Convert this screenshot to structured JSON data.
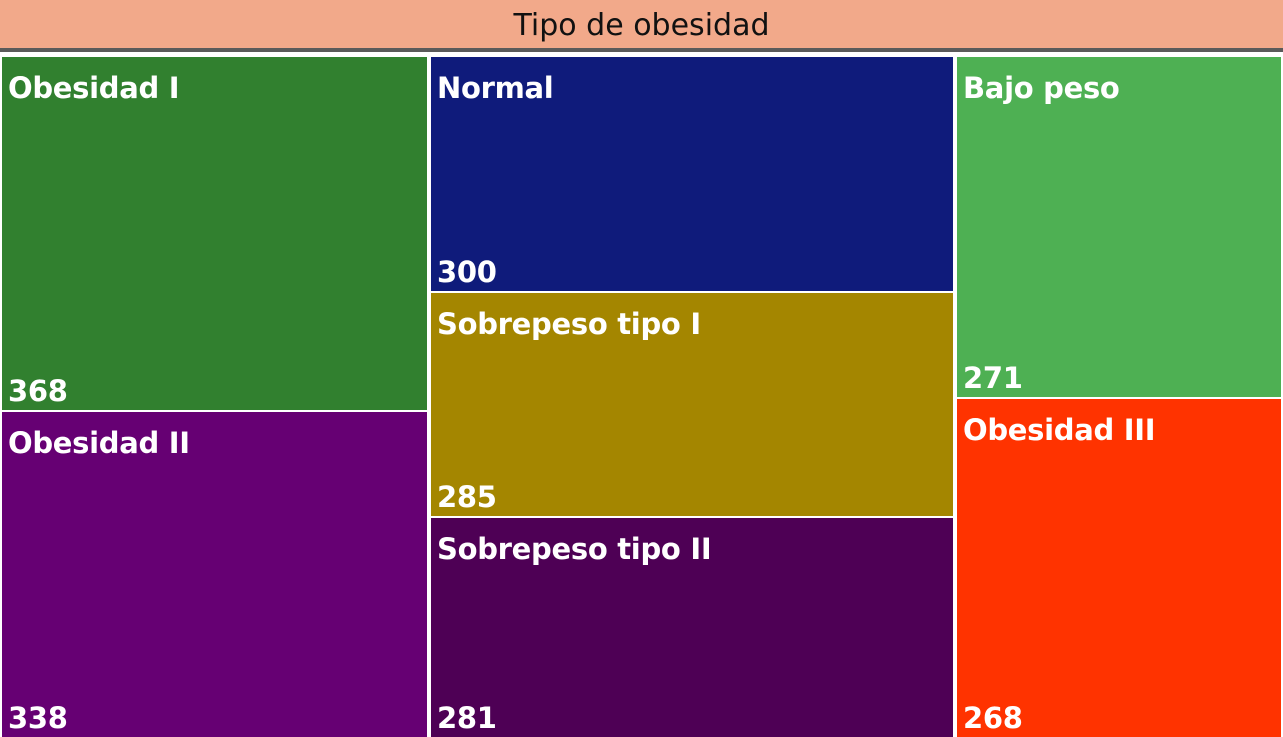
{
  "chart_data": {
    "type": "treemap",
    "title": "Tipo de obesidad",
    "items": [
      {
        "name": "Obesidad I",
        "value": 368,
        "color": "#31802f"
      },
      {
        "name": "Obesidad II",
        "value": 338,
        "color": "#660073"
      },
      {
        "name": "Normal",
        "value": 300,
        "color": "#0f1b7b"
      },
      {
        "name": "Sobrepeso tipo I",
        "value": 285,
        "color": "#a48600"
      },
      {
        "name": "Sobrepeso tipo II",
        "value": 281,
        "color": "#4e0055"
      },
      {
        "name": "Bajo peso",
        "value": 271,
        "color": "#4eb053"
      },
      {
        "name": "Obesidad III",
        "value": 268,
        "color": "#ff3300"
      }
    ]
  }
}
